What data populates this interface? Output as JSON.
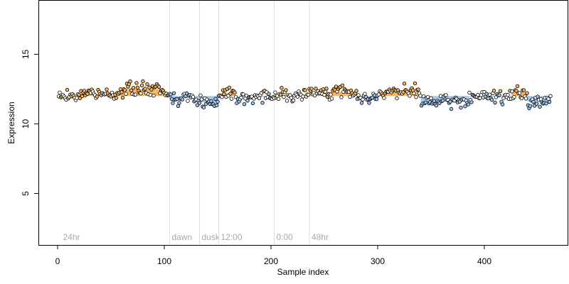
{
  "chart_data": {
    "type": "scatter",
    "xlabel": "Sample index",
    "ylabel": "Expression",
    "xlim": [
      -18,
      478
    ],
    "ylim": [
      1.3,
      18.9
    ],
    "x_ticks": [
      0,
      100,
      200,
      300,
      400
    ],
    "y_ticks": [
      5,
      10,
      15
    ],
    "baseline": 12.0,
    "n_samples": 462,
    "colors": {
      "above_baseline": "#f5b35b",
      "below_baseline": "#9cc3ec",
      "point_outline": "#000000",
      "separator": "#dcdcdc",
      "separator_label": "#a8a8a8"
    },
    "separators": [
      {
        "x": 3,
        "label": "24hr",
        "line": false
      },
      {
        "x": 105,
        "label": "dawn",
        "line": true
      },
      {
        "x": 133,
        "label": "dusk",
        "line": true
      },
      {
        "x": 151,
        "label": "12:00",
        "line": true
      },
      {
        "x": 203,
        "label": "0:00",
        "line": true
      },
      {
        "x": 236,
        "label": "48hr",
        "line": true
      }
    ],
    "segments": [
      {
        "start": 1,
        "end": 20,
        "level": 12.0
      },
      {
        "start": 21,
        "end": 45,
        "level": 12.15
      },
      {
        "start": 46,
        "end": 64,
        "level": 12.25
      },
      {
        "start": 65,
        "end": 95,
        "level": 12.5
      },
      {
        "start": 96,
        "end": 104,
        "level": 12.25
      },
      {
        "start": 105,
        "end": 132,
        "level": 11.85
      },
      {
        "start": 133,
        "end": 150,
        "level": 11.55
      },
      {
        "start": 151,
        "end": 166,
        "level": 12.2
      },
      {
        "start": 167,
        "end": 202,
        "level": 11.95
      },
      {
        "start": 203,
        "end": 235,
        "level": 12.1
      },
      {
        "start": 236,
        "end": 280,
        "level": 12.3
      },
      {
        "start": 281,
        "end": 300,
        "level": 11.85
      },
      {
        "start": 301,
        "end": 340,
        "level": 12.3
      },
      {
        "start": 341,
        "end": 345,
        "level": 11.6
      },
      {
        "start": 346,
        "end": 385,
        "level": 11.6
      },
      {
        "start": 386,
        "end": 425,
        "level": 11.95
      },
      {
        "start": 426,
        "end": 440,
        "level": 12.25
      },
      {
        "start": 441,
        "end": 462,
        "level": 11.6
      }
    ],
    "point_spread": 0.33
  }
}
